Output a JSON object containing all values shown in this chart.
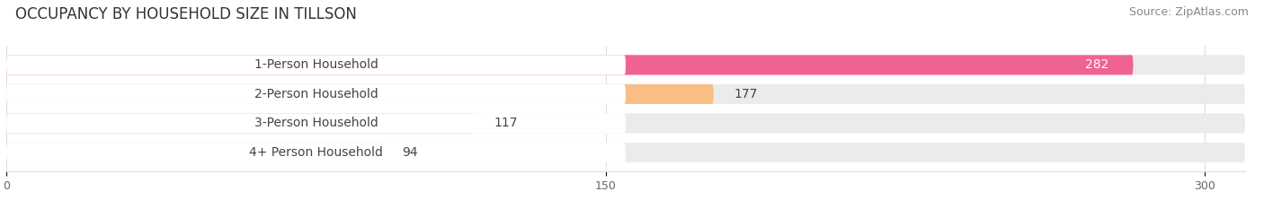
{
  "title": "OCCUPANCY BY HOUSEHOLD SIZE IN TILLSON",
  "source": "Source: ZipAtlas.com",
  "categories": [
    "1-Person Household",
    "2-Person Household",
    "3-Person Household",
    "4+ Person Household"
  ],
  "values": [
    282,
    177,
    117,
    94
  ],
  "bar_colors": [
    "#F06292",
    "#F9BE85",
    "#F4A8A8",
    "#AECDE8"
  ],
  "xlim": [
    0,
    310
  ],
  "xticks": [
    0,
    150,
    300
  ],
  "title_fontsize": 12,
  "source_fontsize": 9,
  "label_fontsize": 10,
  "value_fontsize": 10,
  "background_color": "#FFFFFF",
  "bar_background_color": "#EBEBEB",
  "label_box_color": "#FFFFFF"
}
